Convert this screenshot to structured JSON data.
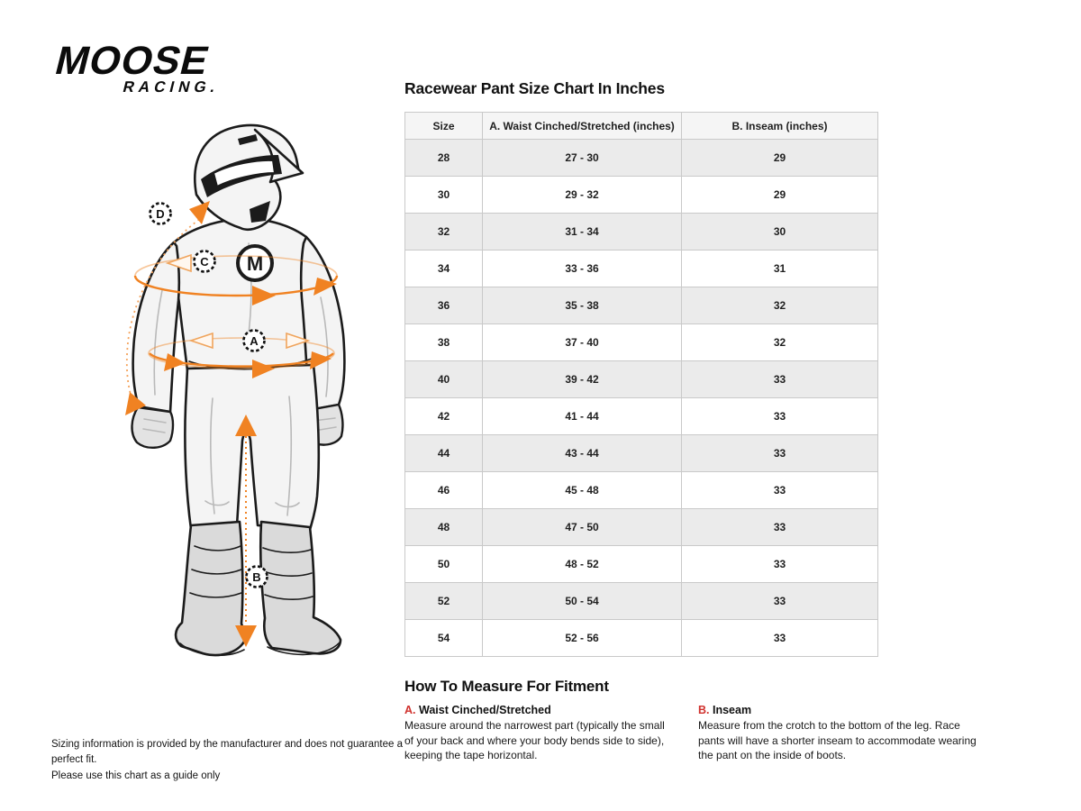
{
  "brand": {
    "top": "MOOSE",
    "bottom": "RACING."
  },
  "size_chart": {
    "title": "Racewear Pant Size Chart In Inches",
    "columns": [
      "Size",
      "A. Waist Cinched/Stretched (inches)",
      "B. Inseam (inches)"
    ],
    "rows": [
      [
        "28",
        "27 - 30",
        "29"
      ],
      [
        "30",
        "29 - 32",
        "29"
      ],
      [
        "32",
        "31 - 34",
        "30"
      ],
      [
        "34",
        "33 - 36",
        "31"
      ],
      [
        "36",
        "35 - 38",
        "32"
      ],
      [
        "38",
        "37 - 40",
        "32"
      ],
      [
        "40",
        "39 - 42",
        "33"
      ],
      [
        "42",
        "41 - 44",
        "33"
      ],
      [
        "44",
        "43 - 44",
        "33"
      ],
      [
        "46",
        "45 - 48",
        "33"
      ],
      [
        "48",
        "47 - 50",
        "33"
      ],
      [
        "50",
        "48 - 52",
        "33"
      ],
      [
        "52",
        "50 - 54",
        "33"
      ],
      [
        "54",
        "52 - 56",
        "33"
      ]
    ]
  },
  "how_to": {
    "title": "How To Measure For Fitment",
    "items": [
      {
        "letter": "A.",
        "label": "Waist Cinched/Stretched",
        "text": "Measure around the narrowest part (typically the small of your back and where your body bends side to side), keeping the tape horizontal."
      },
      {
        "letter": "B.",
        "label": "Inseam",
        "text": "Measure from the crotch to the bottom of the leg. Race pants will have a shorter inseam to accommodate wearing the pant on the inside of boots."
      }
    ]
  },
  "disclaimer": {
    "line1": "Sizing information is provided by the manufacturer and does not guarantee a perfect fit.",
    "line2": "Please use this chart as a guide only"
  },
  "figure": {
    "markers": {
      "sleeve": "D",
      "chest": "C",
      "waist": "A",
      "inseam": "B"
    },
    "chest_logo": "M"
  },
  "colors": {
    "accent_orange": "#F08222",
    "accent_red": "#D0312D",
    "header_bg": "#F5F5F5",
    "row_alt": "#EBEBEB",
    "table_border": "#C9C9C9"
  }
}
